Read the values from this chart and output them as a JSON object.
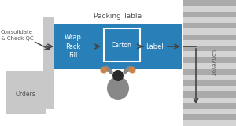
{
  "bg_color": "#ffffff",
  "packing_table_color": "#2980b9",
  "packing_table_label": "Packing Table",
  "orders_box_color": "#c8c8c8",
  "orders_label": "Orders",
  "consolidate_label": "Consolidate\n& Check QC",
  "wrap_pack_fill_label": "Wrap\nPack\nFill",
  "carton_label": "Carton",
  "label_label": "Label",
  "conveyor_label": "Conveyor",
  "conveyor_stripe_color_a": "#aaaaaa",
  "conveyor_stripe_color_b": "#d4d4d4",
  "arrow_color": "#444444",
  "carton_box_color": "#ffffff",
  "text_color_on_blue": "#ffffff",
  "text_color_dark": "#555555",
  "figure_bg": "#ffffff",
  "gray_bar_color": "#aaaaaa",
  "person_body_color": "#888888",
  "person_head_color": "#2a2a2a",
  "person_hand_color": "#c8844a",
  "person_suit_color": "#888888"
}
